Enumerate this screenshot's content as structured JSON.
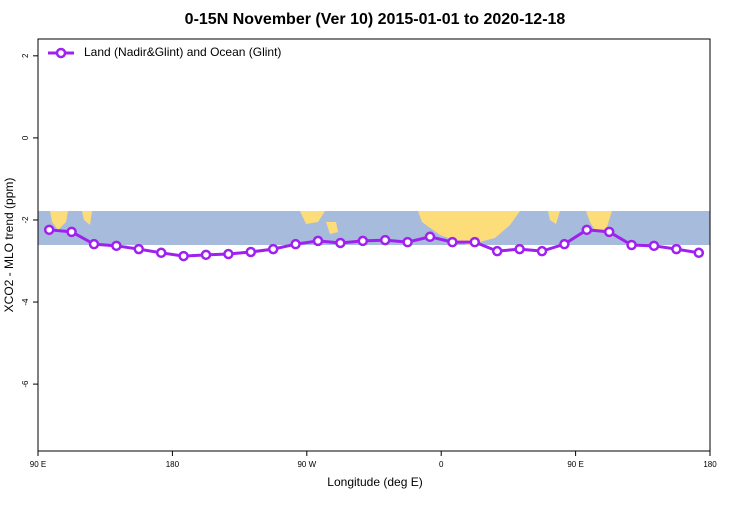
{
  "chart_data": {
    "type": "line",
    "title": "0-15N November (Ver 10)   2015-01-01 to 2020-12-18",
    "x_label": "Longitude (deg E)",
    "y_label": "XCO2 - MLO trend (ppm)",
    "x": [
      97.5,
      112.5,
      127.5,
      142.5,
      157.5,
      172.5,
      187.5,
      202.5,
      217.5,
      232.5,
      247.5,
      262.5,
      277.5,
      292.5,
      307.5,
      322.5,
      337.5,
      352.5,
      367.5,
      382.5,
      397.5,
      412.5,
      427.5,
      442.5,
      457.5,
      472.5,
      487.5,
      502.5,
      517.5,
      532.5
    ],
    "series": [
      {
        "name": "Land (Nadir&Glint) and Ocean (Glint)",
        "color": "#a020f0",
        "values": [
          -2.24,
          -2.29,
          -2.59,
          -2.63,
          -2.71,
          -2.8,
          -2.88,
          -2.85,
          -2.83,
          -2.78,
          -2.71,
          -2.59,
          -2.51,
          -2.56,
          -2.51,
          -2.49,
          -2.54,
          -2.41,
          -2.54,
          -2.54,
          -2.76,
          -2.71,
          -2.76,
          -2.59,
          -2.24,
          -2.29,
          -2.61,
          -2.63,
          -2.71,
          -2.8
        ]
      }
    ],
    "xlim": [
      90,
      540
    ],
    "xticks": [
      {
        "value": 90,
        "label": "90 E"
      },
      {
        "value": 180,
        "label": "180"
      },
      {
        "value": 270,
        "label": "90 W"
      },
      {
        "value": 360,
        "label": "0"
      },
      {
        "value": 450,
        "label": "90 E"
      },
      {
        "value": 540,
        "label": "180"
      }
    ],
    "ylim": [
      -7.63,
      2.41
    ],
    "yticks": [
      2,
      0,
      -2,
      -4,
      -6
    ],
    "legend": "top-left"
  }
}
